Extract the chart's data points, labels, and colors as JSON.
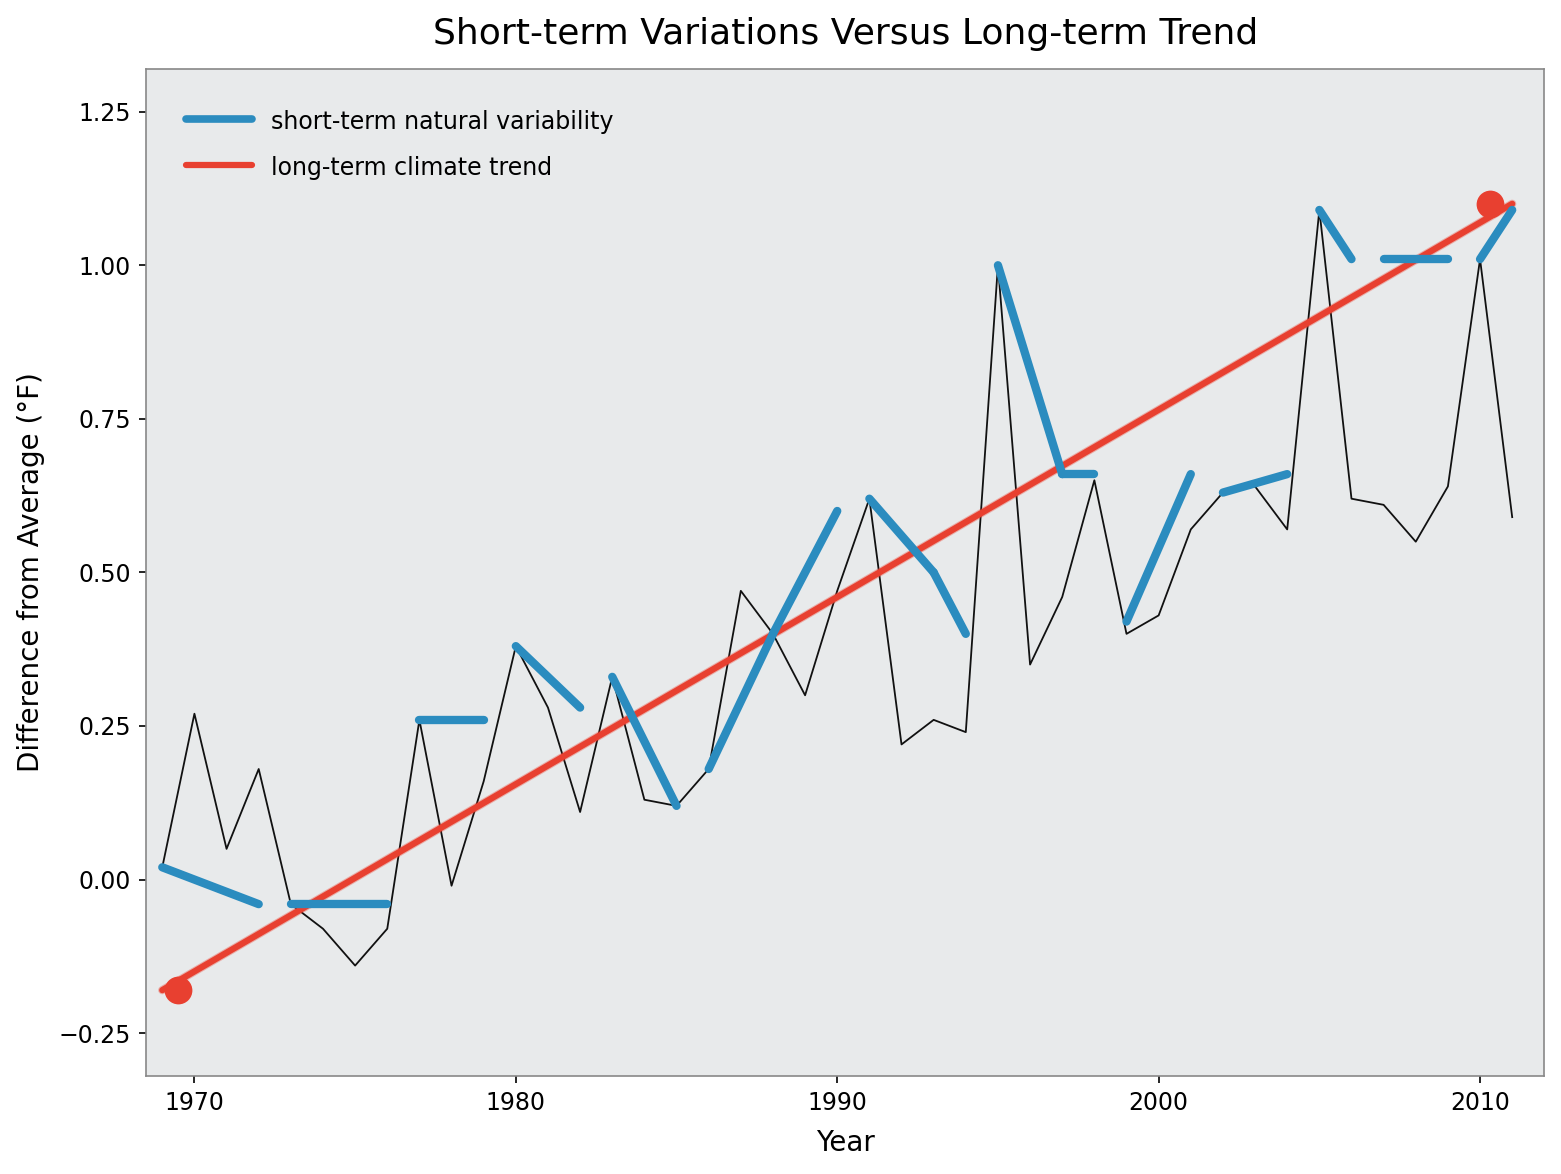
{
  "title": "Short-term Variations Versus Long-term Trend",
  "xlabel": "Year",
  "ylabel": "Difference from Average (°F)",
  "xlim": [
    1968.5,
    2012.0
  ],
  "ylim": [
    -0.32,
    1.32
  ],
  "xticks": [
    1970,
    1980,
    1990,
    2000,
    2010
  ],
  "yticks": [
    -0.25,
    0,
    0.25,
    0.5,
    0.75,
    1.0,
    1.25
  ],
  "plot_bg": "#e8eaeb",
  "outer_bg": "#ffffff",
  "raw_years": [
    1969,
    1970,
    1971,
    1972,
    1973,
    1974,
    1975,
    1976,
    1977,
    1978,
    1979,
    1980,
    1981,
    1982,
    1983,
    1984,
    1985,
    1986,
    1987,
    1988,
    1989,
    1990,
    1991,
    1992,
    1993,
    1994,
    1995,
    1996,
    1997,
    1998,
    1999,
    2000,
    2001,
    2002,
    2003,
    2004,
    2005,
    2006,
    2007,
    2008,
    2009,
    2010,
    2011
  ],
  "raw_values": [
    0.02,
    0.27,
    0.05,
    0.18,
    -0.04,
    -0.08,
    -0.14,
    -0.08,
    0.26,
    -0.01,
    0.16,
    0.38,
    0.28,
    0.11,
    0.33,
    0.13,
    0.12,
    0.18,
    0.47,
    0.4,
    0.3,
    0.47,
    0.62,
    0.22,
    0.26,
    0.24,
    1.0,
    0.35,
    0.46,
    0.65,
    0.4,
    0.43,
    0.57,
    0.63,
    0.64,
    0.57,
    1.09,
    0.62,
    0.61,
    0.55,
    0.64,
    1.01,
    0.59
  ],
  "blue_segments": [
    [
      [
        1969,
        0.02
      ],
      [
        1972,
        -0.04
      ]
    ],
    [
      [
        1973,
        -0.04
      ],
      [
        1976,
        -0.04
      ]
    ],
    [
      [
        1977,
        0.26
      ],
      [
        1979,
        0.26
      ]
    ],
    [
      [
        1980,
        0.38
      ],
      [
        1982,
        0.28
      ]
    ],
    [
      [
        1983,
        0.33
      ],
      [
        1985,
        0.12
      ]
    ],
    [
      [
        1986,
        0.18
      ],
      [
        1988,
        0.4
      ]
    ],
    [
      [
        1988,
        0.4
      ],
      [
        1990,
        0.6
      ]
    ],
    [
      [
        1991,
        0.62
      ],
      [
        1993,
        0.5
      ]
    ],
    [
      [
        1993,
        0.5
      ],
      [
        1994,
        0.4
      ]
    ],
    [
      [
        1995,
        1.0
      ],
      [
        1997,
        0.66
      ]
    ],
    [
      [
        1997,
        0.66
      ],
      [
        1998,
        0.66
      ]
    ],
    [
      [
        1999,
        0.42
      ],
      [
        2001,
        0.66
      ]
    ],
    [
      [
        2002,
        0.63
      ],
      [
        2004,
        0.66
      ]
    ],
    [
      [
        2005,
        1.09
      ],
      [
        2006,
        1.01
      ]
    ],
    [
      [
        2007,
        1.01
      ],
      [
        2009,
        1.01
      ]
    ],
    [
      [
        2010,
        1.01
      ],
      [
        2011,
        1.09
      ]
    ]
  ],
  "trend_x": [
    1969,
    2011
  ],
  "trend_y": [
    -0.18,
    1.1
  ],
  "dot_points": [
    [
      1969.5,
      -0.18
    ],
    [
      2010.3,
      1.1
    ]
  ],
  "dot_color": "#e84030",
  "blue_color": "#2b8cbf",
  "trend_color": "#e84030",
  "raw_color": "#111111",
  "title_fontsize": 26,
  "label_fontsize": 20,
  "tick_fontsize": 17,
  "legend_fontsize": 17
}
